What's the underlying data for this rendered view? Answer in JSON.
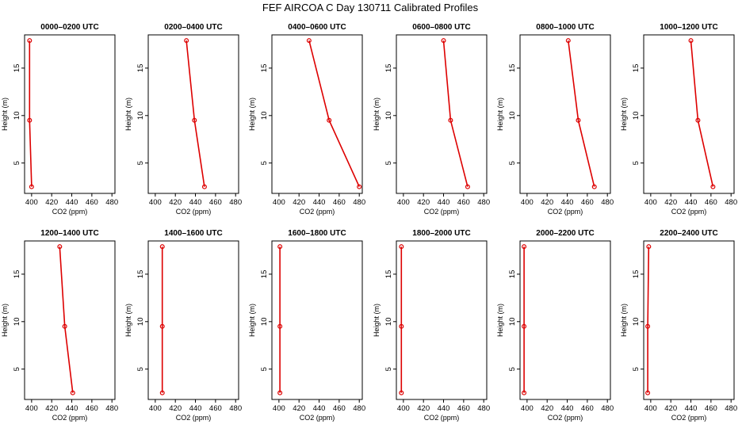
{
  "title": "FEF AIRCOA C  Day 130711  Calibrated Profiles",
  "style": {
    "series_color": "#dd0000",
    "axis_color": "#000000"
  },
  "chart_data": {
    "type": "line",
    "layout_note": "small multiples, 2 rows x 6 columns",
    "shared": {
      "xlabel": "CO2 (ppm)",
      "ylabel": "Height (m)",
      "xlim": [
        393,
        483
      ],
      "ylim": [
        1.8,
        18.5
      ],
      "xticks": [
        400,
        420,
        440,
        460,
        480
      ],
      "yticks": [
        5,
        10,
        15
      ],
      "heights": [
        17.9,
        9.5,
        2.5
      ],
      "grid": false,
      "legend": "none"
    },
    "panels": [
      {
        "title": "0000–0200 UTC",
        "co2": [
          398,
          398,
          400
        ]
      },
      {
        "title": "0200–0400 UTC",
        "co2": [
          431,
          439,
          449
        ]
      },
      {
        "title": "0400–0600 UTC",
        "co2": [
          430,
          450,
          480
        ]
      },
      {
        "title": "0600–0800 UTC",
        "co2": [
          440,
          447,
          464
        ]
      },
      {
        "title": "0800–1000 UTC",
        "co2": [
          441,
          451,
          467
        ]
      },
      {
        "title": "1000–1200 UTC",
        "co2": [
          440,
          447,
          462
        ]
      },
      {
        "title": "1200–1400 UTC",
        "co2": [
          428,
          433,
          441
        ]
      },
      {
        "title": "1400–1600 UTC",
        "co2": [
          407,
          407,
          407
        ]
      },
      {
        "title": "1600–1800 UTC",
        "co2": [
          401,
          401,
          401
        ]
      },
      {
        "title": "1800–2000 UTC",
        "co2": [
          398,
          398,
          398
        ]
      },
      {
        "title": "2000–2200 UTC",
        "co2": [
          397,
          397,
          397
        ]
      },
      {
        "title": "2200–2400 UTC",
        "co2": [
          398,
          397,
          397
        ]
      }
    ]
  }
}
